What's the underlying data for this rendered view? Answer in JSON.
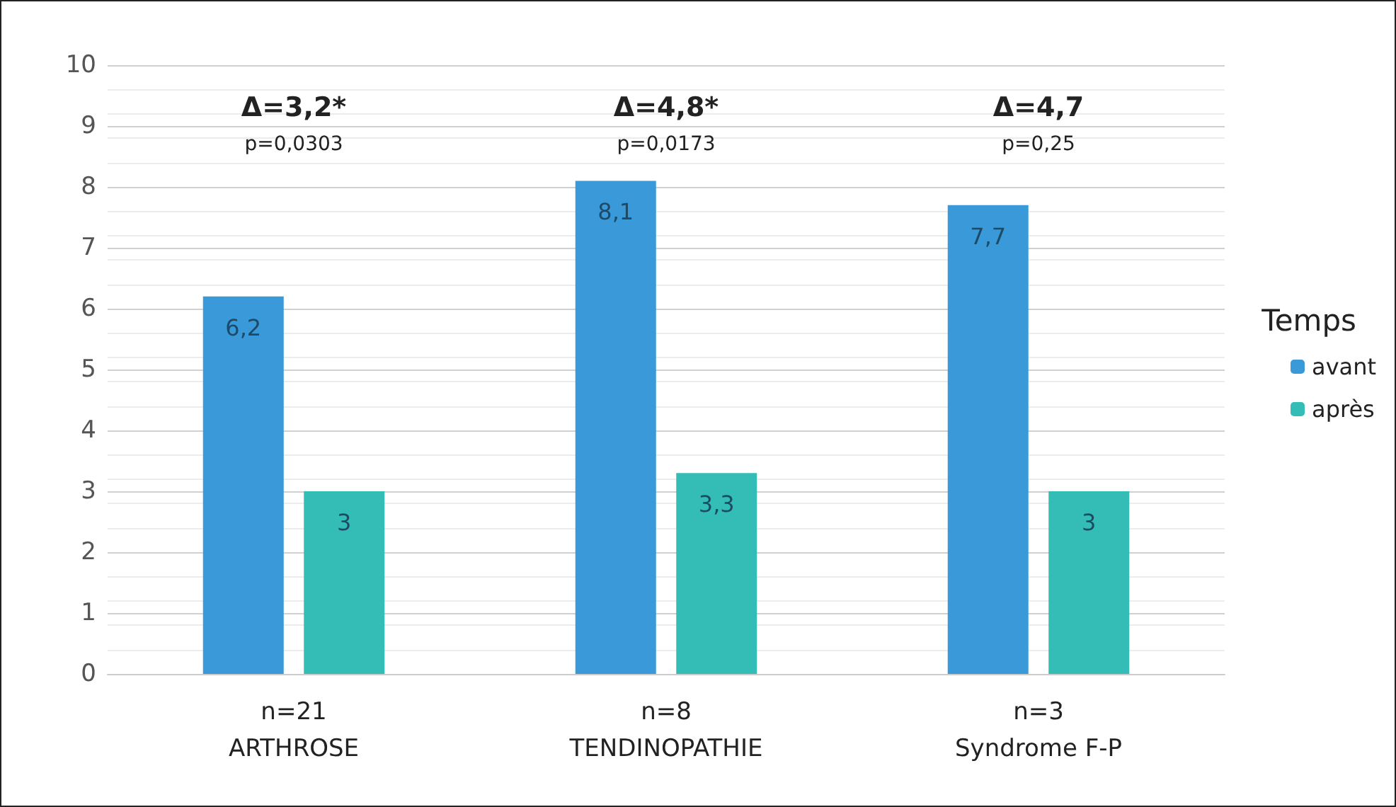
{
  "chart_data": {
    "type": "bar",
    "categories": [
      "n=21\nARTHROSE",
      "n=8\nTENDINOPATHIE",
      "n=3\nSyndrome F-P"
    ],
    "series": [
      {
        "name": "avant",
        "color": "#3a9ad9",
        "values": [
          6.2,
          8.1,
          7.7
        ],
        "value_labels": [
          "6,2",
          "8,1",
          "7,7"
        ]
      },
      {
        "name": "après",
        "color": "#33bdb6",
        "values": [
          3,
          3.3,
          3
        ],
        "value_labels": [
          "3",
          "3,3",
          "3"
        ]
      }
    ],
    "ylim": [
      0,
      10
    ],
    "yticks": [
      0,
      1,
      2,
      3,
      4,
      5,
      6,
      7,
      8,
      9,
      10
    ],
    "grid": "y",
    "legend": "right",
    "legend_title": "Temps",
    "annotations": [
      "Δ=3,2*",
      "p=0,0303",
      "Δ=4,8*",
      "p=0,0173",
      "Δ=4,7",
      "p=0,25"
    ]
  }
}
